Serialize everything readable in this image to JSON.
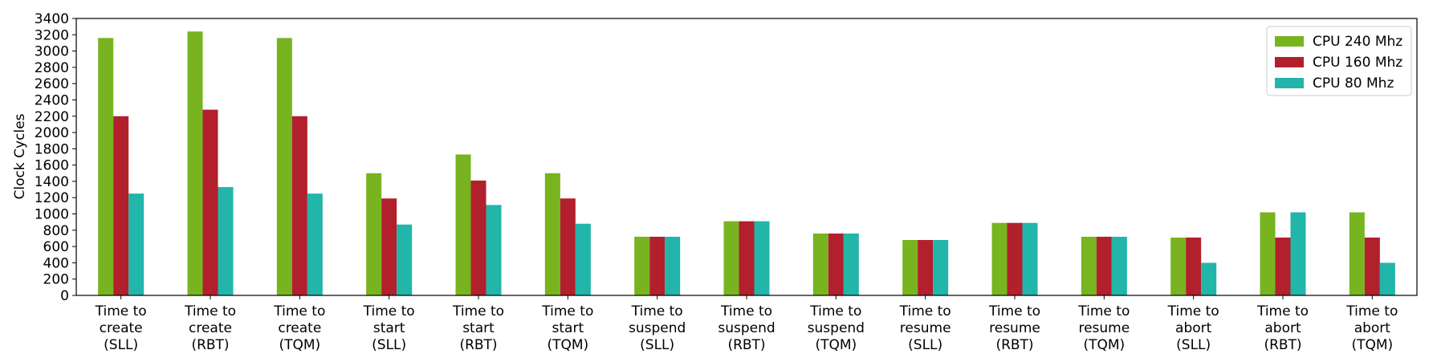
{
  "chart_data": {
    "type": "bar",
    "ylabel": "Clock Cycles",
    "xlabel": "",
    "ylim": [
      0,
      3400
    ],
    "yticks": [
      0,
      200,
      400,
      600,
      800,
      1000,
      1200,
      1400,
      1600,
      1800,
      2000,
      2200,
      2400,
      2600,
      2800,
      3000,
      3200,
      3400
    ],
    "grid": false,
    "legend_position": "top-right",
    "categories": [
      [
        "Time to",
        "create",
        "(SLL)"
      ],
      [
        "Time to",
        "create",
        "(RBT)"
      ],
      [
        "Time to",
        "create",
        "(TQM)"
      ],
      [
        "Time to",
        "start",
        "(SLL)"
      ],
      [
        "Time to",
        "start",
        "(RBT)"
      ],
      [
        "Time to",
        "start",
        "(TQM)"
      ],
      [
        "Time to",
        "suspend",
        "(SLL)"
      ],
      [
        "Time to",
        "suspend",
        "(RBT)"
      ],
      [
        "Time to",
        "suspend",
        "(TQM)"
      ],
      [
        "Time to",
        "resume",
        "(SLL)"
      ],
      [
        "Time to",
        "resume",
        "(RBT)"
      ],
      [
        "Time to",
        "resume",
        "(TQM)"
      ],
      [
        "Time to",
        "abort",
        "(SLL)"
      ],
      [
        "Time to",
        "abort",
        "(RBT)"
      ],
      [
        "Time to",
        "abort",
        "(TQM)"
      ]
    ],
    "series": [
      {
        "name": "CPU 240 Mhz",
        "color": "#77b41f",
        "values": [
          3160,
          3240,
          3160,
          1500,
          1730,
          1500,
          720,
          910,
          760,
          680,
          890,
          720,
          710,
          1020,
          1020
        ]
      },
      {
        "name": "CPU 160 Mhz",
        "color": "#b21f2d",
        "values": [
          2200,
          2280,
          2200,
          1190,
          1410,
          1190,
          720,
          910,
          760,
          680,
          890,
          720,
          710,
          710,
          710
        ]
      },
      {
        "name": "CPU 80 Mhz",
        "color": "#22b5aa",
        "values": [
          1250,
          1330,
          1250,
          870,
          1110,
          880,
          720,
          910,
          760,
          680,
          890,
          720,
          400,
          1020,
          400
        ]
      }
    ]
  }
}
